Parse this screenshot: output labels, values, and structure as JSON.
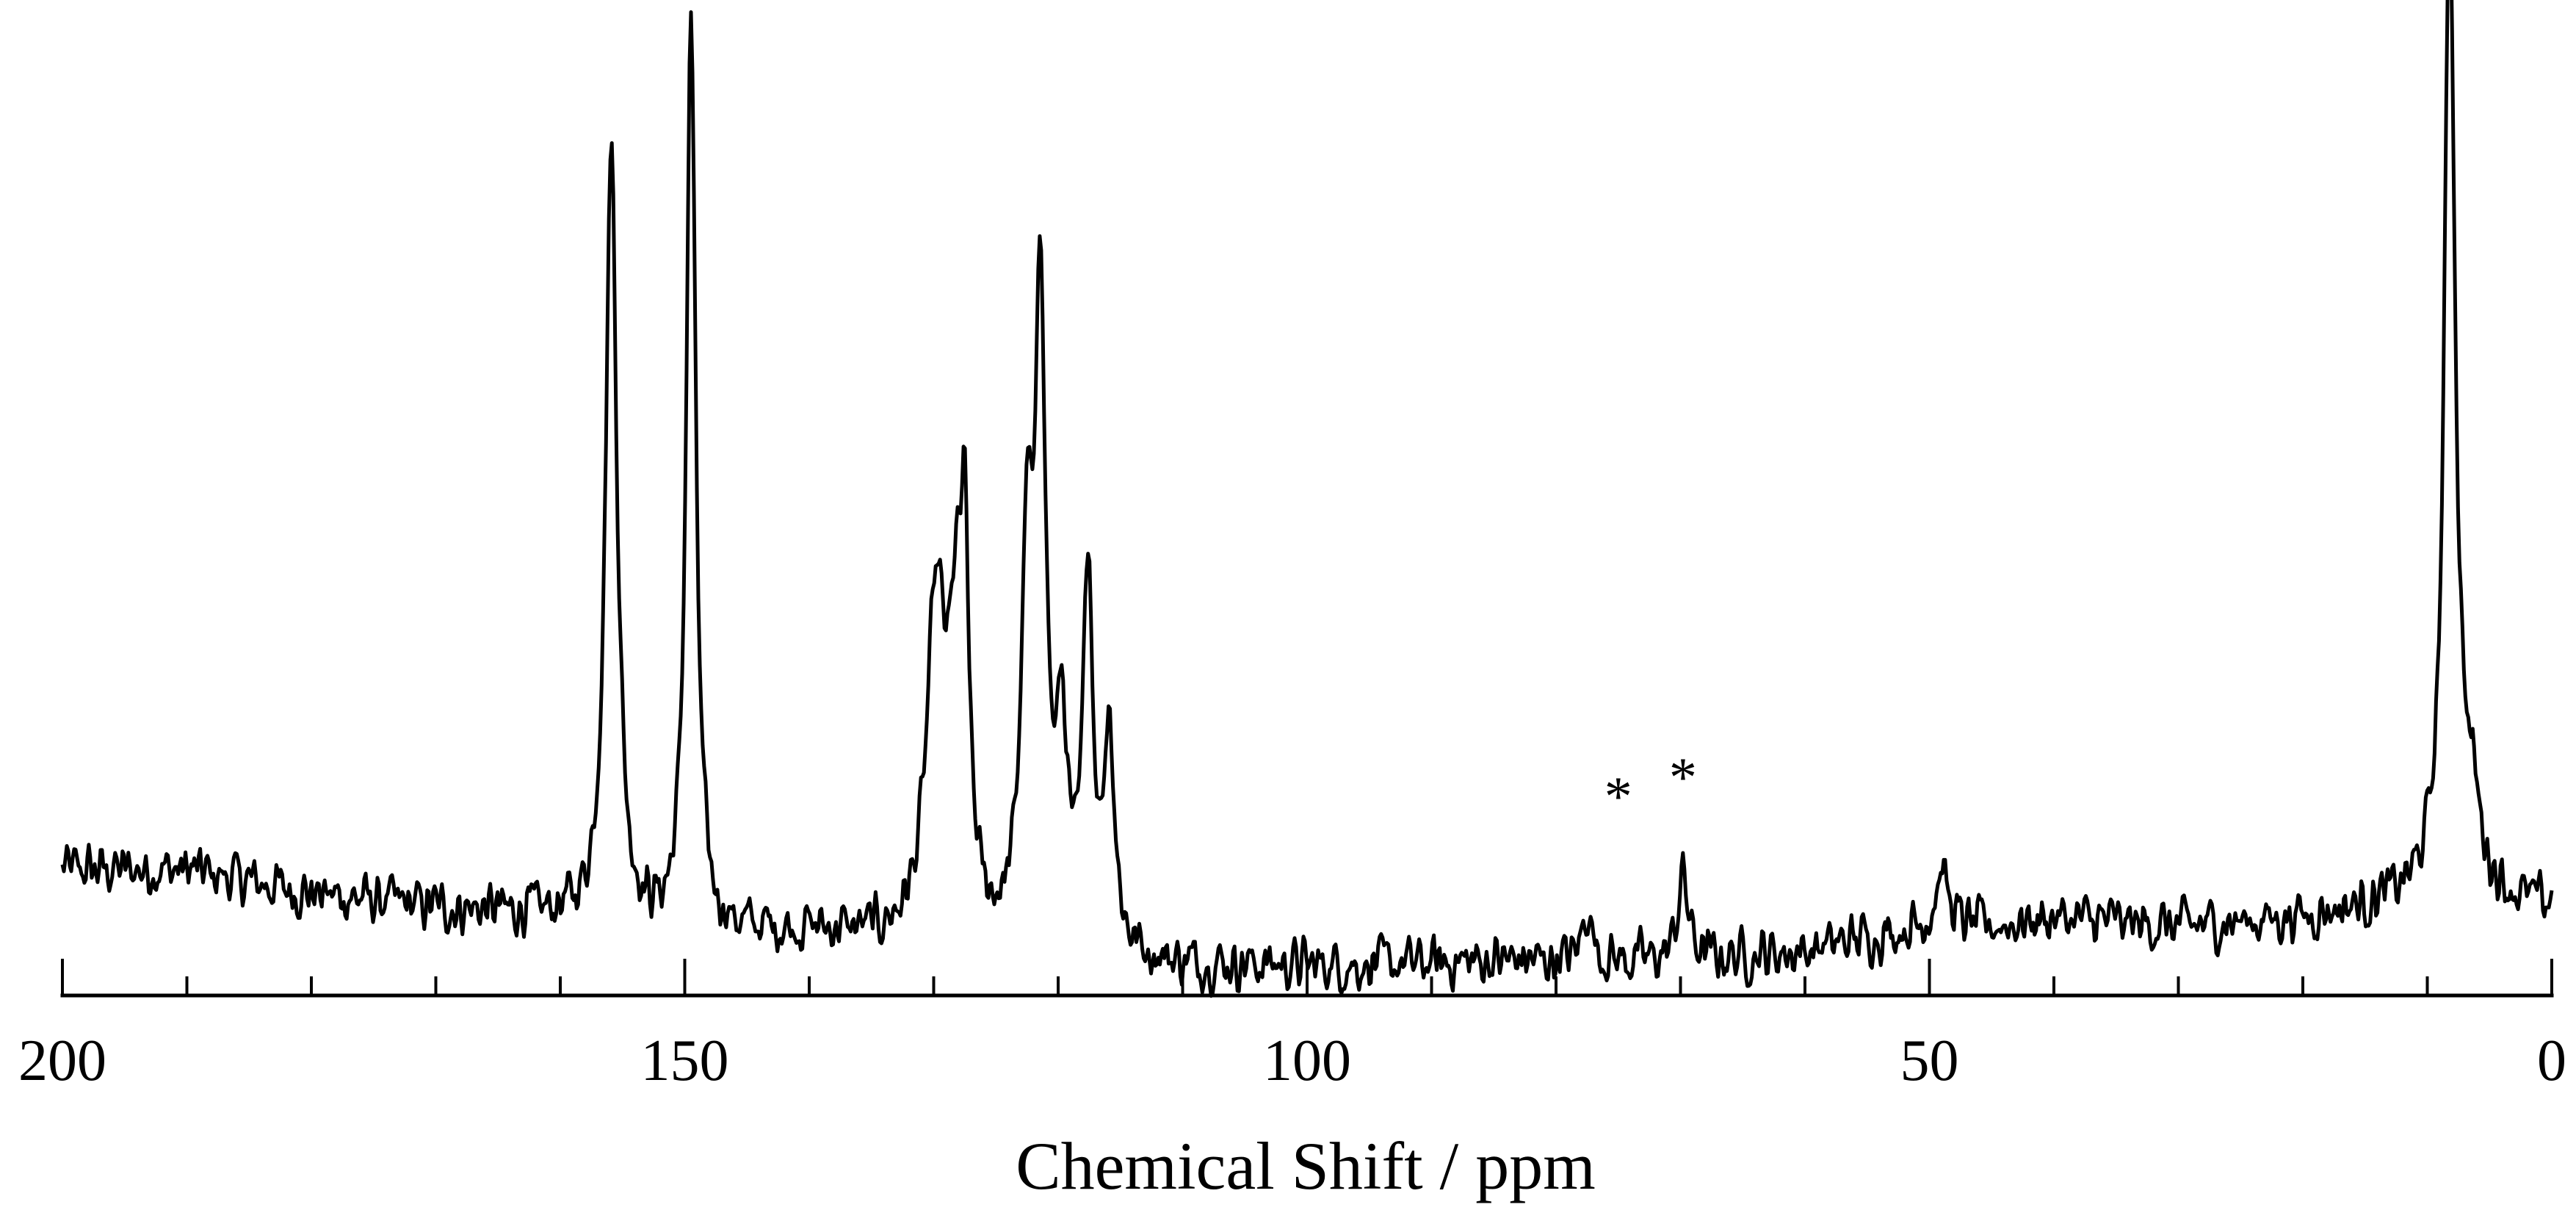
{
  "chart_data": {
    "type": "line",
    "title": "",
    "xlabel": "Chemical Shift / ppm",
    "ylabel": "",
    "xlim": [
      200,
      0
    ],
    "x_reversed": true,
    "ylim": [
      0,
      1
    ],
    "grid": false,
    "line_color": "#000000",
    "x_ticks_major": [
      200,
      150,
      100,
      50,
      0
    ],
    "x_tick_labels": [
      "200",
      "150",
      "100",
      "50",
      "0"
    ],
    "x_ticks_minor_step": 10,
    "annotations": [
      {
        "text": "*",
        "x": 75.0,
        "y": 0.195
      },
      {
        "text": "*",
        "x": 69.8,
        "y": 0.215
      }
    ],
    "series": [
      {
        "peaks": [
          {
            "x": 155.9,
            "y": 0.81,
            "width": 0.55
          },
          {
            "x": 149.5,
            "y": 0.95,
            "width": 0.45
          },
          {
            "x": 129.8,
            "y": 0.34,
            "width": 0.9
          },
          {
            "x": 128.2,
            "y": 0.26,
            "width": 0.7
          },
          {
            "x": 127.5,
            "y": 0.31,
            "width": 0.4
          },
          {
            "x": 122.5,
            "y": 0.38,
            "width": 0.55
          },
          {
            "x": 121.4,
            "y": 0.65,
            "width": 0.5
          },
          {
            "x": 119.7,
            "y": 0.21,
            "width": 0.5
          },
          {
            "x": 117.6,
            "y": 0.4,
            "width": 0.45
          },
          {
            "x": 115.9,
            "y": 0.23,
            "width": 0.5
          },
          {
            "x": 77.5,
            "y": 0.055,
            "width": 0.45
          },
          {
            "x": 69.8,
            "y": 0.09,
            "width": 0.5
          },
          {
            "x": 49.0,
            "y": 0.06,
            "width": 0.6
          },
          {
            "x": 8.2,
            "y": 1.0,
            "width": 0.5
          },
          {
            "x": 7.0,
            "y": 0.08,
            "width": 1.4
          },
          {
            "x": 6.2,
            "y": 0.03,
            "width": 0.5
          }
        ],
        "baseline": [
          {
            "x": 200,
            "y": 0.1
          },
          {
            "x": 190,
            "y": 0.1
          },
          {
            "x": 180,
            "y": 0.075
          },
          {
            "x": 170,
            "y": 0.06
          },
          {
            "x": 160,
            "y": 0.05
          },
          {
            "x": 150,
            "y": 0.03
          },
          {
            "x": 140,
            "y": 0.035
          },
          {
            "x": 130,
            "y": 0.02
          },
          {
            "x": 110,
            "y": 0.0
          },
          {
            "x": 95,
            "y": 0.0
          },
          {
            "x": 85,
            "y": 0.005
          },
          {
            "x": 75,
            "y": 0.005
          },
          {
            "x": 70,
            "y": 0.005
          },
          {
            "x": 60,
            "y": 0.015
          },
          {
            "x": 55,
            "y": 0.03
          },
          {
            "x": 50,
            "y": 0.04
          },
          {
            "x": 45,
            "y": 0.04
          },
          {
            "x": 40,
            "y": 0.05
          },
          {
            "x": 30,
            "y": 0.04
          },
          {
            "x": 20,
            "y": 0.05
          },
          {
            "x": 10,
            "y": 0.07
          },
          {
            "x": 5,
            "y": 0.06
          },
          {
            "x": 0,
            "y": 0.06
          }
        ]
      }
    ]
  }
}
